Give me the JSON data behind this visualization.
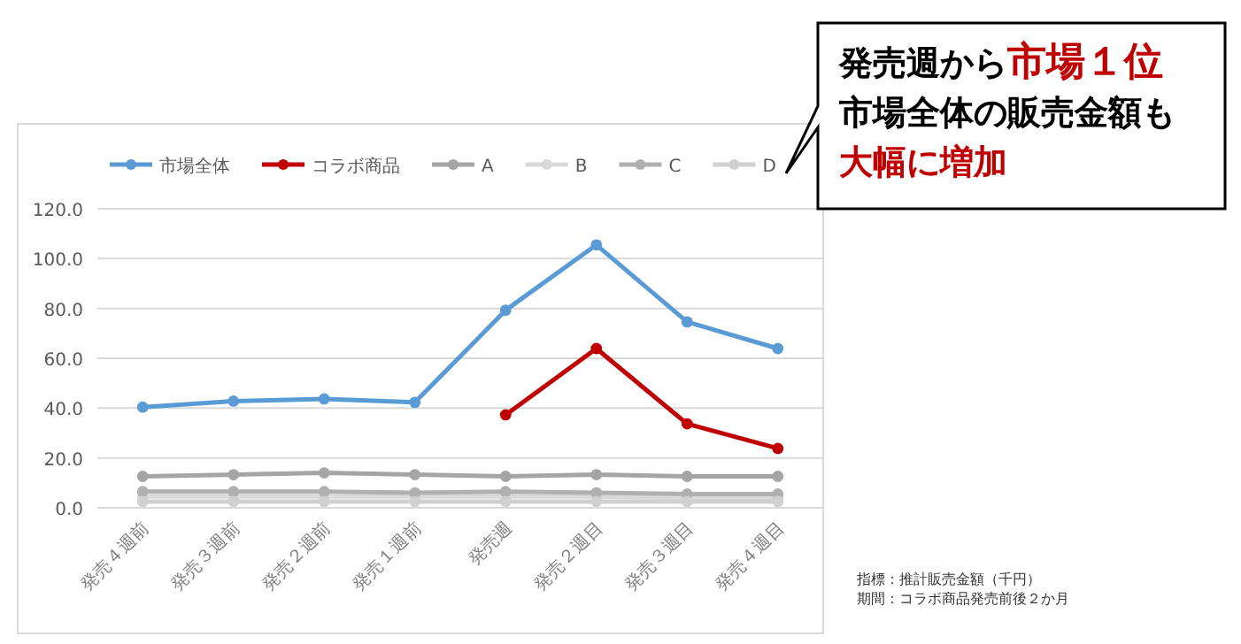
{
  "chart_data": {
    "type": "line",
    "categories": [
      "発売４週前",
      "発売３週前",
      "発売２週前",
      "発売１週前",
      "発売週",
      "発売２週目",
      "発売３週目",
      "発売４週目"
    ],
    "series": [
      {
        "name": "市場全体",
        "color": "#5b9bd5",
        "values": [
          40.4,
          42.8,
          43.7,
          42.3,
          79.3,
          105.5,
          74.6,
          63.9
        ]
      },
      {
        "name": "コラボ商品",
        "color": "#c00000",
        "values": [
          null,
          null,
          null,
          null,
          37.3,
          63.9,
          33.7,
          23.8
        ]
      },
      {
        "name": "A",
        "color": "#a5a5a5",
        "values": [
          12.6,
          13.3,
          14.0,
          13.3,
          12.6,
          13.3,
          12.6,
          12.6
        ]
      },
      {
        "name": "B",
        "color": "#d9d9d9",
        "values": [
          4.5,
          4.5,
          4.5,
          4.5,
          4.5,
          4.5,
          4.0,
          4.0
        ]
      },
      {
        "name": "C",
        "color": "#b0b0b0",
        "values": [
          6.5,
          6.5,
          6.5,
          6.0,
          6.5,
          6.0,
          5.5,
          5.5
        ]
      },
      {
        "name": "D",
        "color": "#d0d0d0",
        "values": [
          2.5,
          2.5,
          2.5,
          2.5,
          2.5,
          2.5,
          2.5,
          2.5
        ]
      }
    ],
    "ylim": [
      0,
      120
    ],
    "yticks": [
      {
        "value": 0,
        "label": "0.0"
      },
      {
        "value": 20,
        "label": "20.0"
      },
      {
        "value": 40,
        "label": "40.0"
      },
      {
        "value": 60,
        "label": "60.0"
      },
      {
        "value": 80,
        "label": "80.0"
      },
      {
        "value": 100,
        "label": "100.0"
      },
      {
        "value": 120,
        "label": "120.0"
      }
    ],
    "grid": "y",
    "legend": "top",
    "marker": "circle",
    "line_style": "solid",
    "annotations": [
      "発売週から",
      "市場１位",
      "市場全体の販売金額も",
      "大幅に増加",
      "指標：推計販売金額（千円）",
      "期間：コラボ商品発売前後２か月"
    ]
  }
}
